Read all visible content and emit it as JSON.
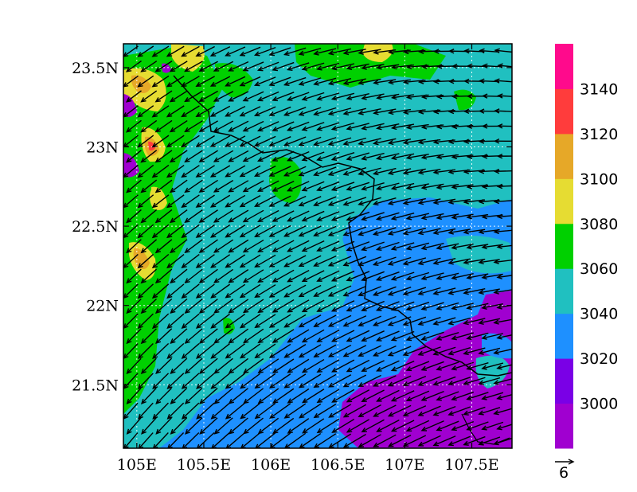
{
  "map": {
    "lon_range": [
      104.9,
      107.8
    ],
    "lat_range": [
      21.1,
      23.65
    ],
    "x_ticks": [
      {
        "value": 105.0,
        "label": "105E"
      },
      {
        "value": 105.5,
        "label": "105.5E"
      },
      {
        "value": 106.0,
        "label": "106E"
      },
      {
        "value": 106.5,
        "label": "106.5E"
      },
      {
        "value": 107.0,
        "label": "107E"
      },
      {
        "value": 107.5,
        "label": "107.5E"
      }
    ],
    "y_ticks": [
      {
        "value": 23.5,
        "label": "23.5N"
      },
      {
        "value": 23.0,
        "label": "23N"
      },
      {
        "value": 22.5,
        "label": "22.5N"
      },
      {
        "value": 22.0,
        "label": "22N"
      },
      {
        "value": 21.5,
        "label": "21.5N"
      }
    ],
    "gridlines": "dotted"
  },
  "colorbar": {
    "levels": [
      "3000",
      "3020",
      "3040",
      "3060",
      "3080",
      "3100",
      "3120",
      "3140"
    ],
    "colors": [
      "#a000d0",
      "#7a00e6",
      "#1e90ff",
      "#20c0c0",
      "#00d000",
      "#e6dc32",
      "#e6a828",
      "#ff3c3c",
      "#ff0a8c"
    ]
  },
  "vector_reference": {
    "value": "6"
  },
  "field_colors": {
    "purple": "#a000d0",
    "blue": "#1e90ff",
    "cyan": "#20c0c0",
    "green": "#00d000",
    "yellow": "#e6dc32",
    "orange": "#e6a828",
    "red": "#ff3c3c"
  }
}
